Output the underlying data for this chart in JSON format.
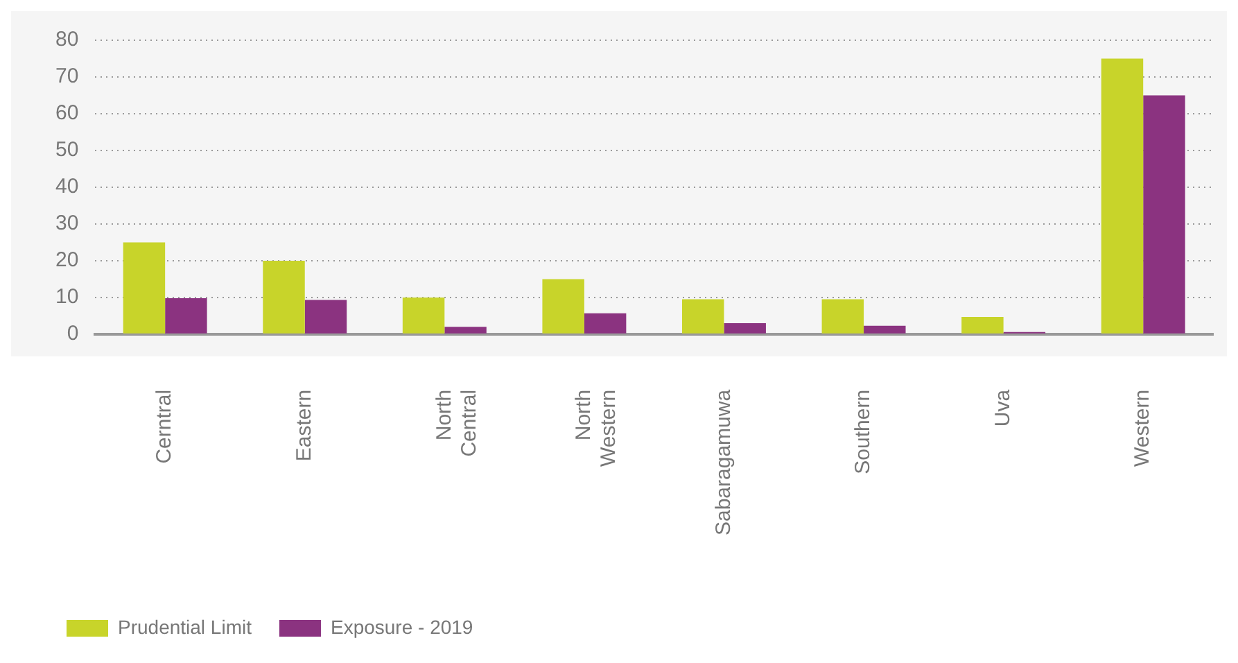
{
  "chart_data": {
    "type": "bar",
    "categories": [
      "Cerntral",
      "Eastern",
      "North Central",
      "North Western",
      "Sabaragamuwa",
      "Southern",
      "Uva",
      "Western"
    ],
    "series": [
      {
        "name": "Prudential Limit",
        "color": "#c8d42a",
        "values": [
          25,
          20,
          10,
          15,
          9.5,
          9.5,
          4.7,
          75
        ]
      },
      {
        "name": "Exposure - 2019",
        "color": "#8b3380",
        "values": [
          9.8,
          9.3,
          2,
          5.7,
          3,
          2.3,
          0.6,
          65
        ]
      }
    ],
    "ylim": [
      0,
      80
    ],
    "yticks": [
      0,
      10,
      20,
      30,
      40,
      50,
      60,
      70,
      80
    ],
    "grid": "y",
    "legend": "bottom"
  }
}
